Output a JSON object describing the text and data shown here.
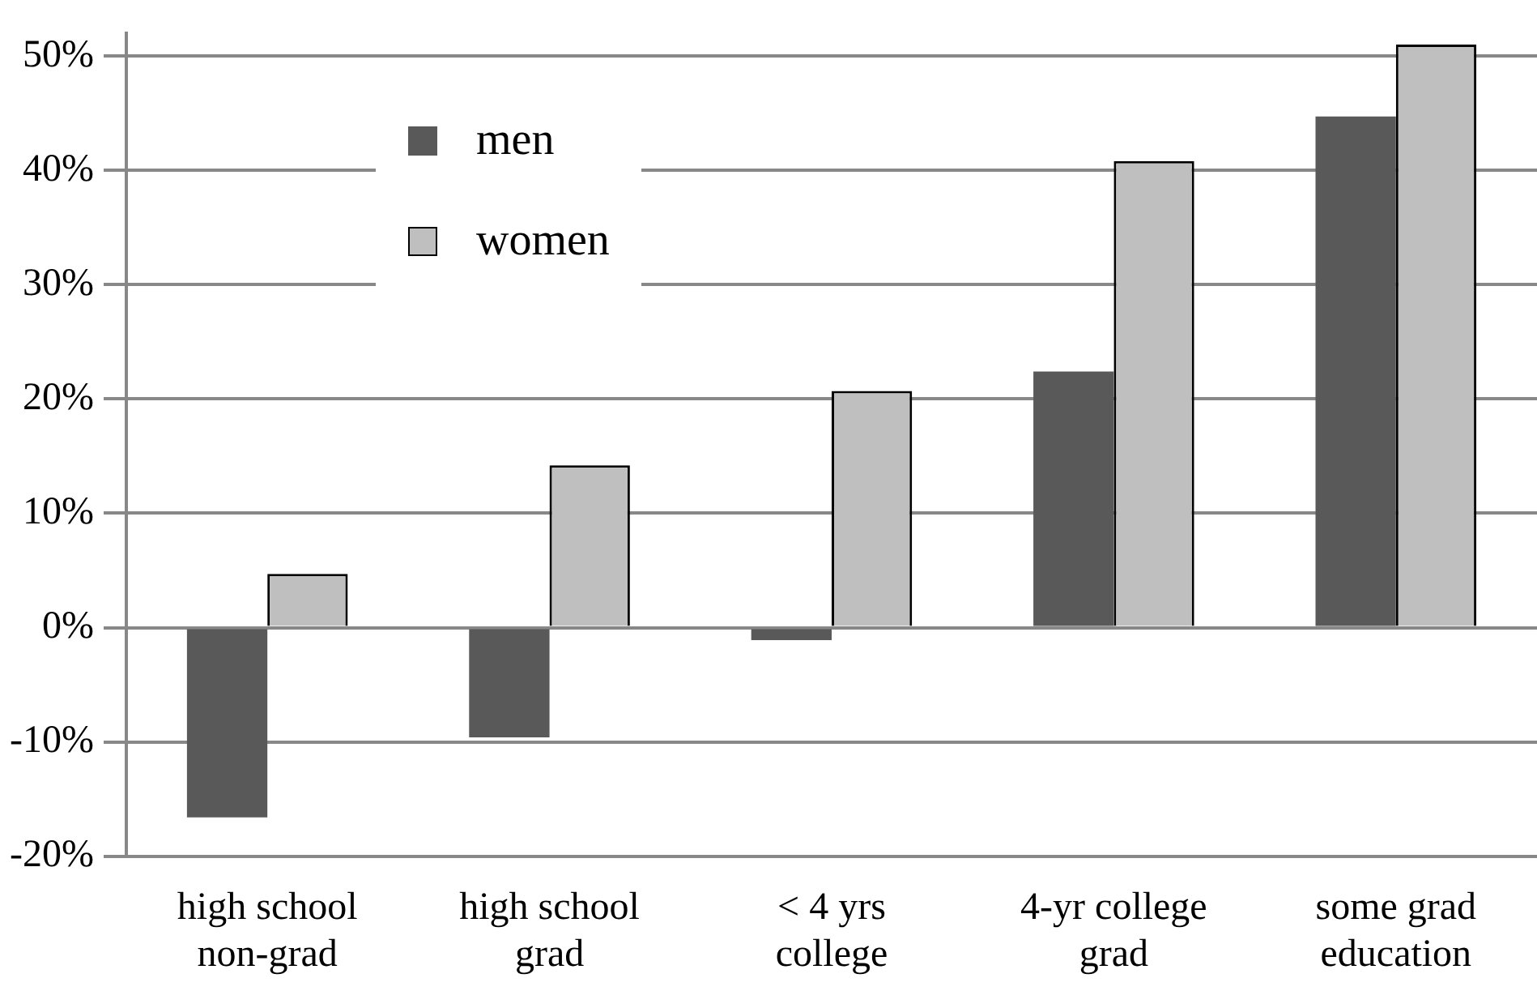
{
  "chart_data": {
    "type": "bar",
    "categories": [
      "high school non-grad",
      "high school grad",
      "< 4 yrs college",
      "4-yr college grad",
      "some grad education"
    ],
    "series": [
      {
        "name": "men",
        "color": "#595959",
        "values": [
          -16.6,
          -9.6,
          -1.1,
          22.4,
          44.7
        ]
      },
      {
        "name": "women",
        "color": "#bfbfbf",
        "values": [
          4.7,
          14.2,
          20.7,
          40.8,
          51.0
        ]
      }
    ],
    "ylim": [
      -20,
      52
    ],
    "yticks": [
      {
        "value": -20,
        "label": "-20%"
      },
      {
        "value": -10,
        "label": "-10%"
      },
      {
        "value": 0,
        "label": "0%"
      },
      {
        "value": 10,
        "label": "10%"
      },
      {
        "value": 20,
        "label": "20%"
      },
      {
        "value": 30,
        "label": "30%"
      },
      {
        "value": 40,
        "label": "40%"
      },
      {
        "value": 50,
        "label": "50%"
      }
    ],
    "grid": "y",
    "legend": "top left"
  }
}
